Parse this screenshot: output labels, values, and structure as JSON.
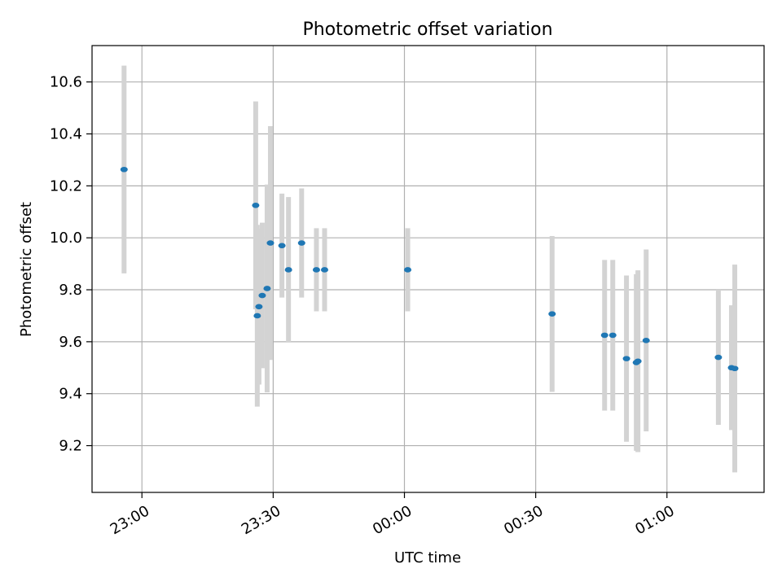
{
  "chart_data": {
    "type": "scatter",
    "title": "Photometric offset variation",
    "xlabel": "UTC time",
    "ylabel": "Photometric offset",
    "x_ticks": [
      "23:00",
      "23:30",
      "00:00",
      "00:30",
      "01:00"
    ],
    "y_ticks": [
      "9.2",
      "9.4",
      "9.6",
      "9.8",
      "10.0",
      "10.2",
      "10.4",
      "10.6"
    ],
    "xlim": [
      "22:48:36",
      "01:22:12"
    ],
    "ylim": [
      9.02,
      10.74
    ],
    "grid": true,
    "colors": {
      "points": "#1f77b4",
      "errorbars": "#d3d3d3",
      "grid": "#b0b0b0"
    },
    "points": [
      {
        "time": "22:55:55",
        "y": 10.263,
        "err": 0.4
      },
      {
        "time": "23:26:00",
        "y": 10.125,
        "err": 0.4
      },
      {
        "time": "23:26:22",
        "y": 9.7,
        "err": 0.35
      },
      {
        "time": "23:26:45",
        "y": 9.735,
        "err": 0.3
      },
      {
        "time": "23:27:30",
        "y": 9.778,
        "err": 0.28
      },
      {
        "time": "23:28:37",
        "y": 9.805,
        "err": 0.4
      },
      {
        "time": "23:29:22",
        "y": 9.98,
        "err": 0.45
      },
      {
        "time": "23:32:00",
        "y": 9.97,
        "err": 0.2
      },
      {
        "time": "23:33:30",
        "y": 9.877,
        "err": 0.28
      },
      {
        "time": "23:36:30",
        "y": 9.98,
        "err": 0.21
      },
      {
        "time": "23:39:53",
        "y": 9.877,
        "err": 0.16
      },
      {
        "time": "23:41:45",
        "y": 9.877,
        "err": 0.16
      },
      {
        "time": "00:00:45",
        "y": 9.877,
        "err": 0.16
      },
      {
        "time": "00:33:45",
        "y": 9.707,
        "err": 0.3
      },
      {
        "time": "00:45:45",
        "y": 9.625,
        "err": 0.29
      },
      {
        "time": "00:47:37",
        "y": 9.625,
        "err": 0.29
      },
      {
        "time": "00:50:45",
        "y": 9.535,
        "err": 0.32
      },
      {
        "time": "00:53:00",
        "y": 9.52,
        "err": 0.34
      },
      {
        "time": "00:53:22",
        "y": 9.525,
        "err": 0.35
      },
      {
        "time": "00:55:15",
        "y": 9.605,
        "err": 0.35
      },
      {
        "time": "01:11:45",
        "y": 9.54,
        "err": 0.26
      },
      {
        "time": "01:14:45",
        "y": 9.5,
        "err": 0.24
      },
      {
        "time": "01:15:30",
        "y": 9.497,
        "err": 0.4
      }
    ]
  }
}
